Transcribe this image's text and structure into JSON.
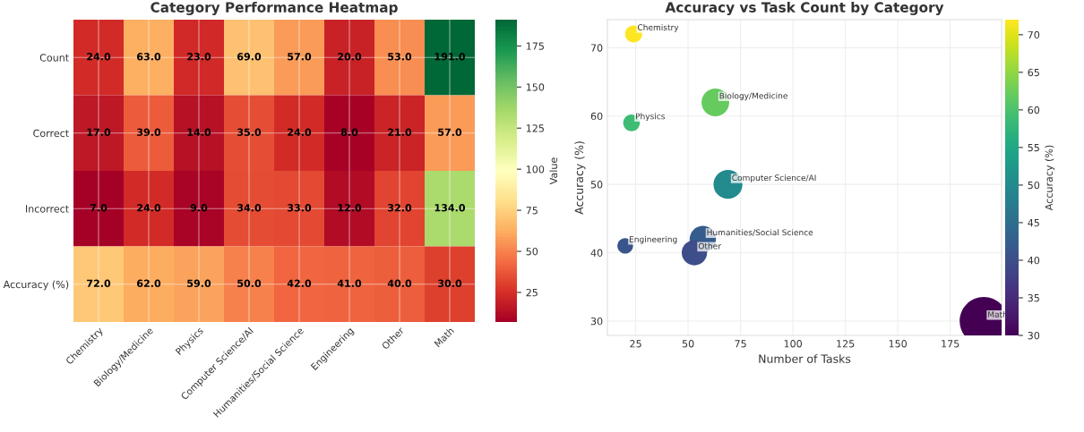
{
  "chart_data": [
    {
      "type": "heatmap",
      "title": "Category Performance Heatmap",
      "clabel": "Value",
      "categories": [
        "Chemistry",
        "Biology/Medicine",
        "Physics",
        "Computer Science/AI",
        "Humanities/Social Science",
        "Engineering",
        "Other",
        "Math"
      ],
      "y_categories": [
        "Count",
        "Correct",
        "Incorrect",
        "Accuracy (%)"
      ],
      "cells": [
        [
          24,
          63,
          23,
          69,
          57,
          20,
          53,
          191
        ],
        [
          17,
          39,
          14,
          35,
          24,
          8,
          21,
          57
        ],
        [
          7,
          24,
          9,
          34,
          33,
          12,
          32,
          134
        ],
        [
          72,
          62,
          59,
          50,
          42,
          41,
          40,
          30
        ]
      ],
      "cell_labels": [
        [
          "24.0",
          "63.0",
          "23.0",
          "69.0",
          "57.0",
          "20.0",
          "53.0",
          "191.0"
        ],
        [
          "17.0",
          "39.0",
          "14.0",
          "35.0",
          "24.0",
          "8.0",
          "21.0",
          "57.0"
        ],
        [
          "7.0",
          "24.0",
          "9.0",
          "34.0",
          "33.0",
          "12.0",
          "32.0",
          "134.0"
        ],
        [
          "72.0",
          "62.0",
          "59.0",
          "50.0",
          "42.0",
          "41.0",
          "40.0",
          "30.0"
        ]
      ],
      "clim": [
        7,
        191
      ],
      "cticks": [
        25,
        50,
        75,
        100,
        125,
        150,
        175
      ],
      "grid": true
    },
    {
      "type": "bubble",
      "title": "Accuracy vs Task Count by Category",
      "xlabel": "Number of Tasks",
      "ylabel": "Accuracy (%)",
      "clabel": "Accuracy (%)",
      "x": [
        24,
        63,
        23,
        69,
        57,
        20,
        53,
        191
      ],
      "values": [
        72,
        62,
        59,
        50,
        42,
        41,
        40,
        30
      ],
      "sizes": [
        0.126,
        0.33,
        0.12,
        0.361,
        0.298,
        0.105,
        0.277,
        1
      ],
      "cvalues": [
        72,
        62,
        59,
        50,
        42,
        41,
        40,
        30
      ],
      "clim": [
        30,
        72
      ],
      "cticks": [
        30,
        35,
        40,
        45,
        50,
        55,
        60,
        65,
        70
      ],
      "xlim": [
        11.5,
        199.5
      ],
      "xticks": [
        25,
        50,
        75,
        100,
        125,
        150,
        175
      ],
      "ylim": [
        27.9,
        74.1
      ],
      "yticks": [
        30,
        40,
        50,
        60,
        70
      ],
      "grid": true,
      "annotations": [
        {
          "text": "Chemistry",
          "x": 24,
          "y": 72
        },
        {
          "text": "Biology/Medicine",
          "x": 63,
          "y": 62
        },
        {
          "text": "Physics",
          "x": 23,
          "y": 59
        },
        {
          "text": "Computer Science/AI",
          "x": 69,
          "y": 50
        },
        {
          "text": "Humanities/Social Science",
          "x": 57,
          "y": 42
        },
        {
          "text": "Engineering",
          "x": 20,
          "y": 41
        },
        {
          "text": "Other",
          "x": 53,
          "y": 40
        },
        {
          "text": "Math",
          "x": 191,
          "y": 30
        }
      ]
    }
  ]
}
